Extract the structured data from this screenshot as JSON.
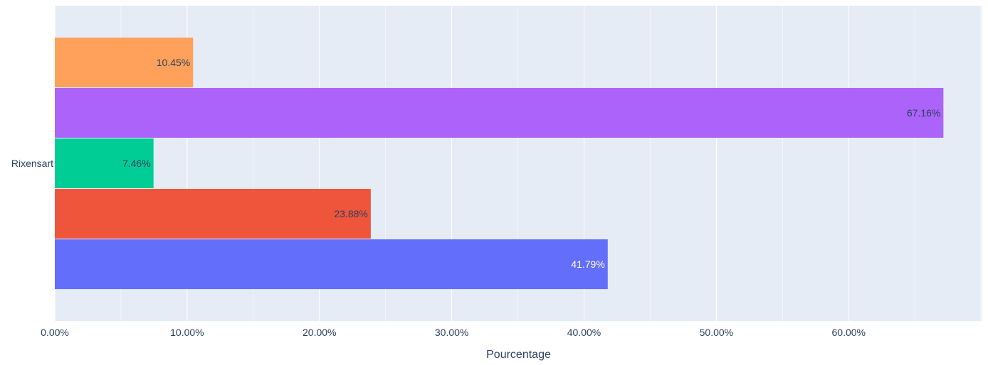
{
  "chart_data": {
    "type": "bar",
    "orientation": "horizontal",
    "category": "Rixensart",
    "series": [
      {
        "value": 41.79,
        "label": "41.79%",
        "color": "#636efa",
        "label_color": "#ffffff"
      },
      {
        "value": 23.88,
        "label": "23.88%",
        "color": "#ef553b",
        "label_color": "#2a3f5f"
      },
      {
        "value": 7.46,
        "label": "7.46%",
        "color": "#00cc96",
        "label_color": "#2a3f5f"
      },
      {
        "value": 67.16,
        "label": "67.16%",
        "color": "#ab63fa",
        "label_color": "#2a3f5f"
      },
      {
        "value": 10.45,
        "label": "10.45%",
        "color": "#ffa15a",
        "label_color": "#2a3f5f"
      }
    ],
    "xlabel": "Pourcentage",
    "xlim": [
      0,
      70.1
    ],
    "x_ticks": [
      {
        "value": 0,
        "label": "0.00%"
      },
      {
        "value": 10,
        "label": "10.00%"
      },
      {
        "value": 20,
        "label": "20.00%"
      },
      {
        "value": 30,
        "label": "30.00%"
      },
      {
        "value": 40,
        "label": "40.00%"
      },
      {
        "value": 50,
        "label": "50.00%"
      },
      {
        "value": 60,
        "label": "60.00%"
      }
    ],
    "grid": true,
    "legend": "none",
    "plot_background": "#e5ecf6"
  }
}
